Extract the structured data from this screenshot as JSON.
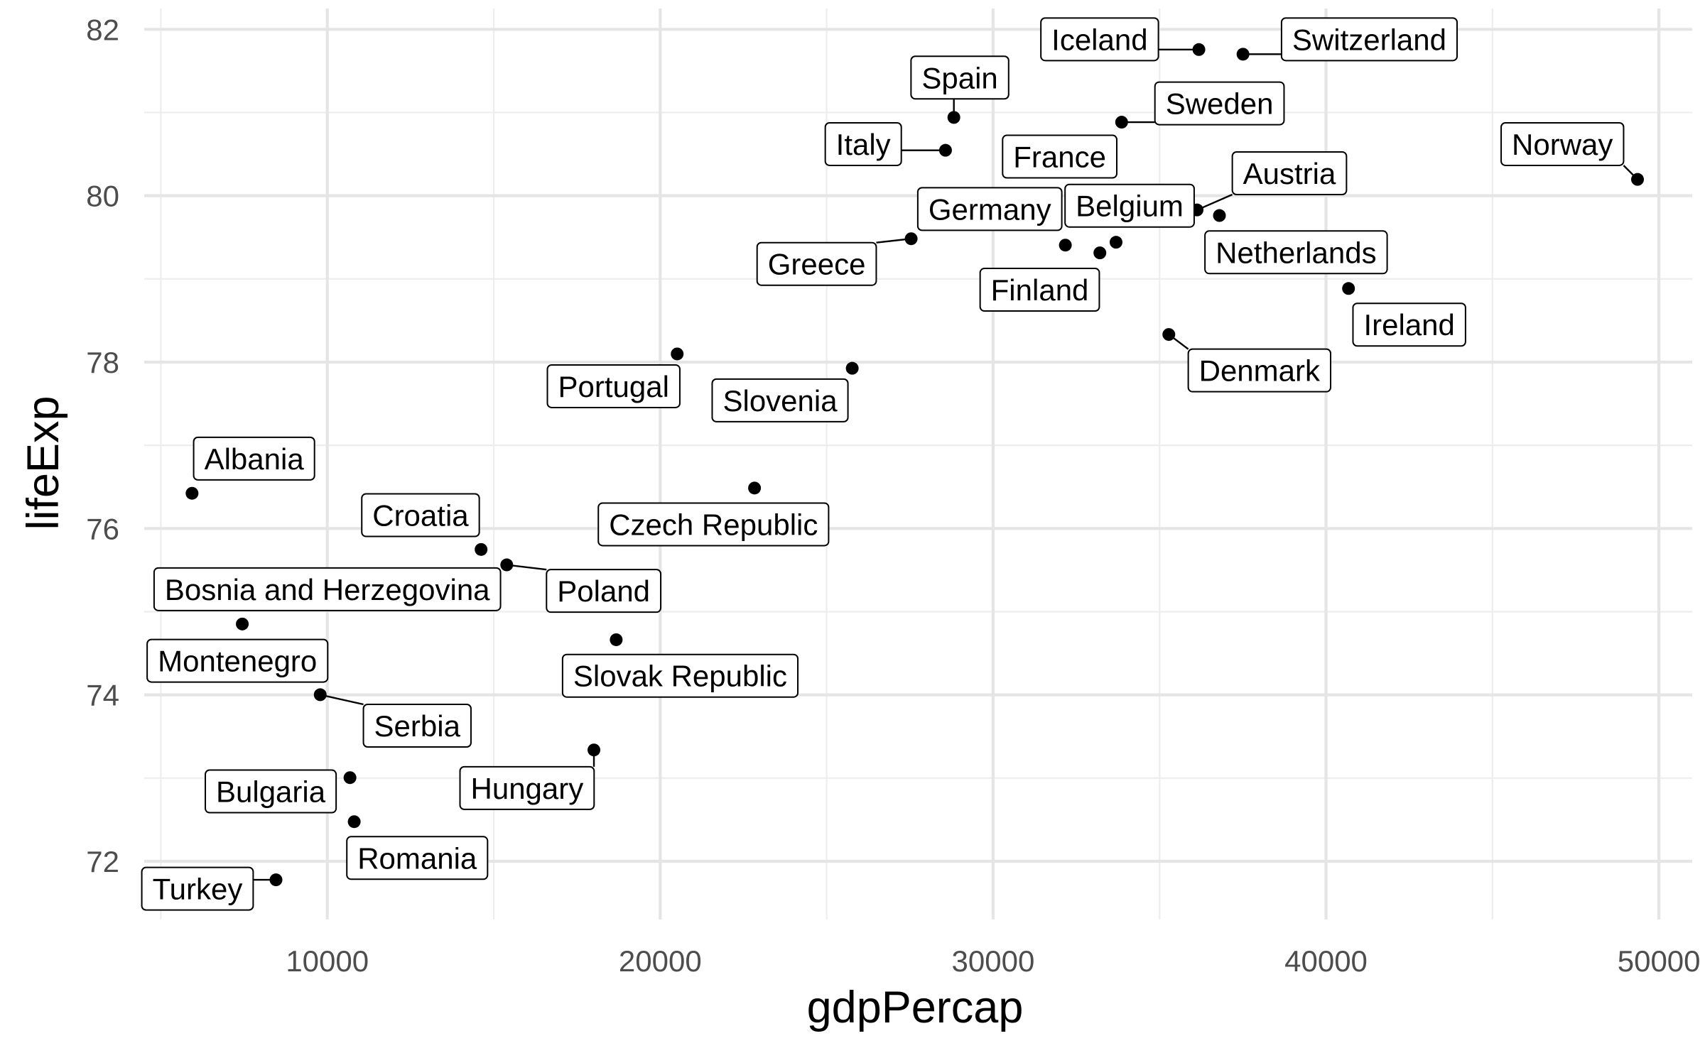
{
  "chart_data": {
    "type": "scatter",
    "title": "",
    "xlabel": "gdpPercap",
    "ylabel": "lifeExp",
    "xlim": [
      4500,
      51000
    ],
    "ylim": [
      71.3,
      82.25
    ],
    "x_ticks": [
      10000,
      20000,
      30000,
      40000,
      50000
    ],
    "y_ticks": [
      72,
      74,
      76,
      78,
      80,
      82
    ],
    "grid": true,
    "theme": "minimal",
    "point_color": "#000000",
    "points": [
      {
        "label": "Iceland",
        "x": 36181,
        "y": 81.757,
        "lx": 33200,
        "ly": 81.88
      },
      {
        "label": "Switzerland",
        "x": 37506,
        "y": 81.701,
        "lx": 41300,
        "ly": 81.88
      },
      {
        "label": "Spain",
        "x": 28821,
        "y": 80.941,
        "lx": 29000,
        "ly": 81.42
      },
      {
        "label": "Sweden",
        "x": 33860,
        "y": 80.884,
        "lx": 36800,
        "ly": 81.11
      },
      {
        "label": "Italy",
        "x": 28570,
        "y": 80.546,
        "lx": 26100,
        "ly": 80.62
      },
      {
        "label": "France",
        "x": 30470,
        "y": 80.657,
        "lx": 32000,
        "ly": 80.47
      },
      {
        "label": "Norway",
        "x": 49357,
        "y": 80.196,
        "lx": 47100,
        "ly": 80.62
      },
      {
        "label": "Austria",
        "x": 36126,
        "y": 79.829,
        "lx": 38900,
        "ly": 80.27
      },
      {
        "label": "Belgium",
        "x": 33693,
        "y": 79.441,
        "lx": 34100,
        "ly": 79.88
      },
      {
        "label": "Germany",
        "x": 32170,
        "y": 79.406,
        "lx": 29900,
        "ly": 79.84
      },
      {
        "label": "Netherlands",
        "x": 36798,
        "y": 79.762,
        "lx": 39100,
        "ly": 79.32
      },
      {
        "label": "Finland",
        "x": 33207,
        "y": 79.313,
        "lx": 31400,
        "ly": 78.87
      },
      {
        "label": "Greece",
        "x": 27538,
        "y": 79.483,
        "lx": 24700,
        "ly": 79.18
      },
      {
        "label": "Ireland",
        "x": 40676,
        "y": 78.885,
        "lx": 42500,
        "ly": 78.45
      },
      {
        "label": "Denmark",
        "x": 35278,
        "y": 78.332,
        "lx": 38000,
        "ly": 77.9
      },
      {
        "label": "Portugal",
        "x": 20510,
        "y": 78.098,
        "lx": 18600,
        "ly": 77.71
      },
      {
        "label": "Slovenia",
        "x": 25768,
        "y": 77.926,
        "lx": 23600,
        "ly": 77.54
      },
      {
        "label": "Albania",
        "x": 5937,
        "y": 76.423,
        "lx": 7800,
        "ly": 76.84
      },
      {
        "label": "Czech Republic",
        "x": 22833,
        "y": 76.486,
        "lx": 21600,
        "ly": 76.05
      },
      {
        "label": "Croatia",
        "x": 14619,
        "y": 75.748,
        "lx": 12800,
        "ly": 76.16
      },
      {
        "label": "Poland",
        "x": 15390,
        "y": 75.563,
        "lx": 18300,
        "ly": 75.25
      },
      {
        "label": "Bosnia and Herzegovina",
        "x": 7446,
        "y": 74.852,
        "lx": 10000,
        "ly": 75.27
      },
      {
        "label": "Slovak Republic",
        "x": 18678,
        "y": 74.663,
        "lx": 20600,
        "ly": 74.23
      },
      {
        "label": "Montenegro",
        "x": 9254,
        "y": 74.543,
        "lx": 7300,
        "ly": 74.41
      },
      {
        "label": "Serbia",
        "x": 9787,
        "y": 74.002,
        "lx": 12700,
        "ly": 73.63
      },
      {
        "label": "Hungary",
        "x": 18009,
        "y": 73.338,
        "lx": 16000,
        "ly": 72.88
      },
      {
        "label": "Bulgaria",
        "x": 10681,
        "y": 73.005,
        "lx": 8300,
        "ly": 72.84
      },
      {
        "label": "Romania",
        "x": 10808,
        "y": 72.476,
        "lx": 12700,
        "ly": 72.04
      },
      {
        "label": "Turkey",
        "x": 8458,
        "y": 71.777,
        "lx": 6100,
        "ly": 71.67
      }
    ]
  }
}
